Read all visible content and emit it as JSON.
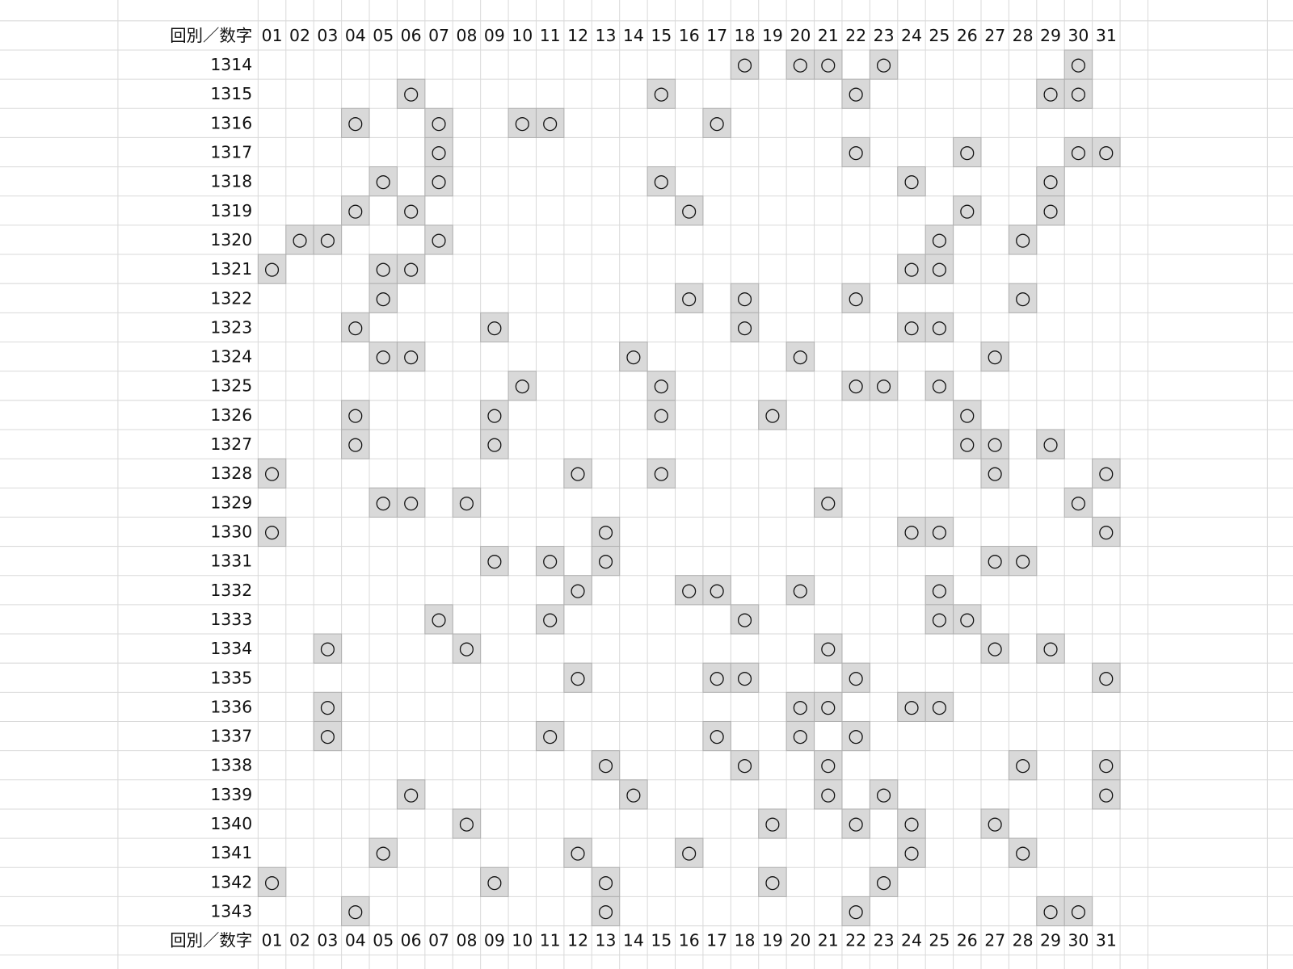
{
  "table": {
    "corner_label": "回別／数字",
    "columns": [
      "01",
      "02",
      "03",
      "04",
      "05",
      "06",
      "07",
      "08",
      "09",
      "10",
      "11",
      "12",
      "13",
      "14",
      "15",
      "16",
      "17",
      "18",
      "19",
      "20",
      "21",
      "22",
      "23",
      "24",
      "25",
      "26",
      "27",
      "28",
      "29",
      "30",
      "31"
    ],
    "mark_symbol": "○",
    "rows": [
      {
        "round": "1314",
        "picks": [
          18,
          20,
          21,
          23,
          30
        ]
      },
      {
        "round": "1315",
        "picks": [
          6,
          15,
          22,
          29,
          30
        ]
      },
      {
        "round": "1316",
        "picks": [
          4,
          7,
          10,
          11,
          17
        ]
      },
      {
        "round": "1317",
        "picks": [
          7,
          22,
          26,
          30,
          31
        ]
      },
      {
        "round": "1318",
        "picks": [
          5,
          7,
          15,
          24,
          29
        ]
      },
      {
        "round": "1319",
        "picks": [
          4,
          6,
          16,
          26,
          29
        ]
      },
      {
        "round": "1320",
        "picks": [
          2,
          3,
          7,
          25,
          28
        ]
      },
      {
        "round": "1321",
        "picks": [
          1,
          5,
          6,
          24,
          25
        ]
      },
      {
        "round": "1322",
        "picks": [
          5,
          16,
          18,
          22,
          28
        ]
      },
      {
        "round": "1323",
        "picks": [
          4,
          9,
          18,
          24,
          25
        ]
      },
      {
        "round": "1324",
        "picks": [
          5,
          6,
          14,
          20,
          27
        ]
      },
      {
        "round": "1325",
        "picks": [
          10,
          15,
          22,
          23,
          25
        ]
      },
      {
        "round": "1326",
        "picks": [
          4,
          9,
          15,
          19,
          26
        ]
      },
      {
        "round": "1327",
        "picks": [
          4,
          9,
          26,
          27,
          29
        ]
      },
      {
        "round": "1328",
        "picks": [
          1,
          12,
          15,
          27,
          31
        ]
      },
      {
        "round": "1329",
        "picks": [
          5,
          6,
          8,
          21,
          30
        ]
      },
      {
        "round": "1330",
        "picks": [
          1,
          13,
          24,
          25,
          31
        ]
      },
      {
        "round": "1331",
        "picks": [
          9,
          11,
          13,
          27,
          28
        ]
      },
      {
        "round": "1332",
        "picks": [
          12,
          16,
          17,
          20,
          25
        ]
      },
      {
        "round": "1333",
        "picks": [
          7,
          11,
          18,
          25,
          26
        ]
      },
      {
        "round": "1334",
        "picks": [
          3,
          8,
          21,
          27,
          29
        ]
      },
      {
        "round": "1335",
        "picks": [
          12,
          17,
          18,
          22,
          31
        ]
      },
      {
        "round": "1336",
        "picks": [
          3,
          20,
          21,
          24,
          25
        ]
      },
      {
        "round": "1337",
        "picks": [
          3,
          11,
          17,
          20,
          22
        ]
      },
      {
        "round": "1338",
        "picks": [
          13,
          18,
          21,
          28,
          31
        ]
      },
      {
        "round": "1339",
        "picks": [
          6,
          14,
          21,
          23,
          31
        ]
      },
      {
        "round": "1340",
        "picks": [
          8,
          19,
          22,
          24,
          27
        ]
      },
      {
        "round": "1341",
        "picks": [
          5,
          12,
          16,
          24,
          28
        ]
      },
      {
        "round": "1342",
        "picks": [
          1,
          9,
          13,
          19,
          23
        ]
      },
      {
        "round": "1343",
        "picks": [
          4,
          13,
          22,
          29,
          30
        ]
      }
    ]
  }
}
